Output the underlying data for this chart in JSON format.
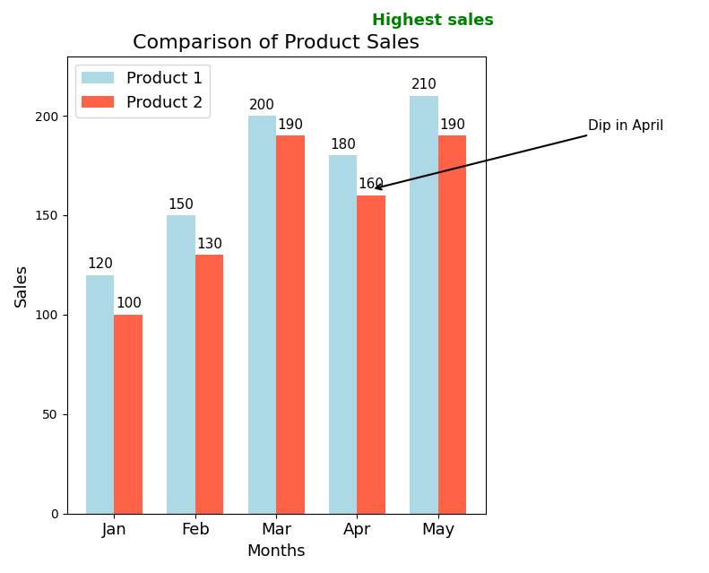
{
  "months": [
    "Jan",
    "Feb",
    "Mar",
    "Apr",
    "May"
  ],
  "product1": [
    120,
    150,
    200,
    180,
    210
  ],
  "product2": [
    100,
    130,
    190,
    160,
    190
  ],
  "color1": "#ADD8E6",
  "color2": "#FF6347",
  "title": "Comparison of Product Sales",
  "xlabel": "Months",
  "ylabel": "Sales",
  "ylim": [
    0,
    230
  ],
  "legend_labels": [
    "Product 1",
    "Product 2"
  ],
  "highest_sales_text": "Highest sales",
  "highest_sales_color": "green",
  "annotation_text": "Dip in April",
  "bar_width": 0.35,
  "title_fontsize": 16,
  "label_fontsize": 13,
  "tick_fontsize": 13,
  "bar_label_fontsize": 11
}
